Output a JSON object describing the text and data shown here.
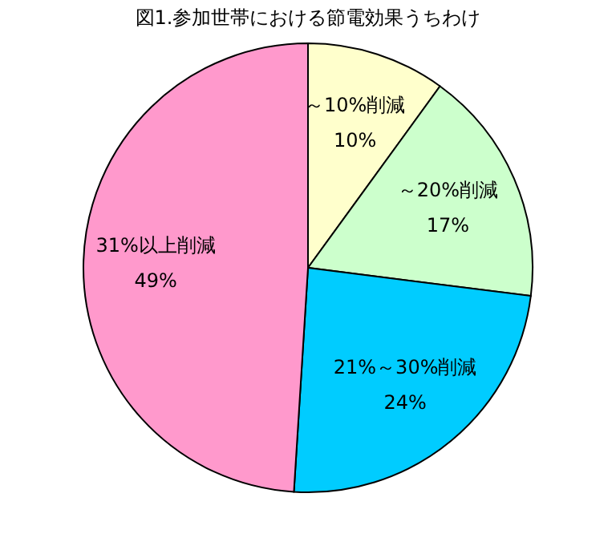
{
  "chart_data": {
    "type": "pie",
    "title": "図1.参加世帯における節電効果うちわけ",
    "categories": [
      "～10%削減",
      "～20%削減",
      "21%～30%削減",
      "31%以上削減"
    ],
    "values": [
      10,
      17,
      24,
      49
    ],
    "colors": [
      "#ffffcc",
      "#ccffcc",
      "#00ccff",
      "#ff99cc"
    ],
    "value_labels": [
      "10%",
      "17%",
      "24%",
      "49%"
    ]
  }
}
